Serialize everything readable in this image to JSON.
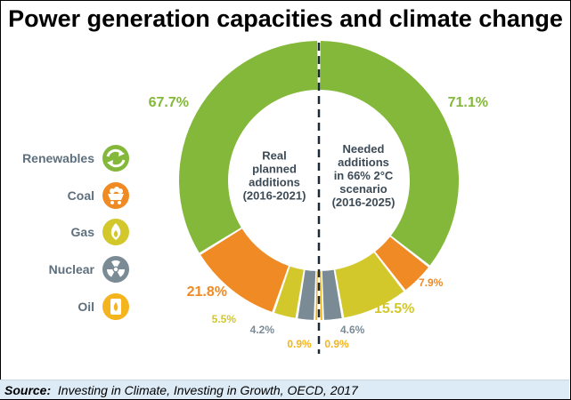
{
  "title": "Power generation capacities and climate change",
  "source_label": "Source:",
  "source_text": "Investing in Climate, Investing in Growth, OECD, 2017",
  "colors": {
    "renewables": "#84b83a",
    "coal": "#f08a24",
    "gas": "#d3c82b",
    "nuclear": "#7a8b96",
    "oil": "#f4b41e",
    "legend_text": "#5e6f7d"
  },
  "legend": [
    {
      "key": "renewables",
      "label": "Renewables",
      "icon": "recycle-icon"
    },
    {
      "key": "coal",
      "label": "Coal",
      "icon": "coal-cart-icon"
    },
    {
      "key": "gas",
      "label": "Gas",
      "icon": "flame-icon"
    },
    {
      "key": "nuclear",
      "label": "Nuclear",
      "icon": "radiation-icon"
    },
    {
      "key": "oil",
      "label": "Oil",
      "icon": "oil-drop-icon"
    }
  ],
  "chart_data": {
    "type": "pie",
    "legend_placement": "left",
    "charts": [
      {
        "center_label": [
          "Real",
          "planned",
          "additions",
          "(2016-2021)"
        ],
        "values": {
          "renewables": 67.7,
          "coal": 21.8,
          "gas": 5.5,
          "nuclear": 4.2,
          "oil": 0.9
        },
        "labels": {
          "renewables": "67.7%",
          "coal": "21.8%",
          "gas": "5.5%",
          "nuclear": "4.2%",
          "oil": "0.9%"
        }
      },
      {
        "center_label": [
          "Needed",
          "additions",
          "in 66% 2°C",
          "scenario",
          "(2016-2025)"
        ],
        "values": {
          "renewables": 71.1,
          "coal": 7.9,
          "gas": 15.5,
          "nuclear": 4.6,
          "oil": 0.9
        },
        "labels": {
          "renewables": "71.1%",
          "coal": "7.9%",
          "gas": "15.5%",
          "nuclear": "4.6%",
          "oil": "0.9%"
        }
      }
    ]
  }
}
